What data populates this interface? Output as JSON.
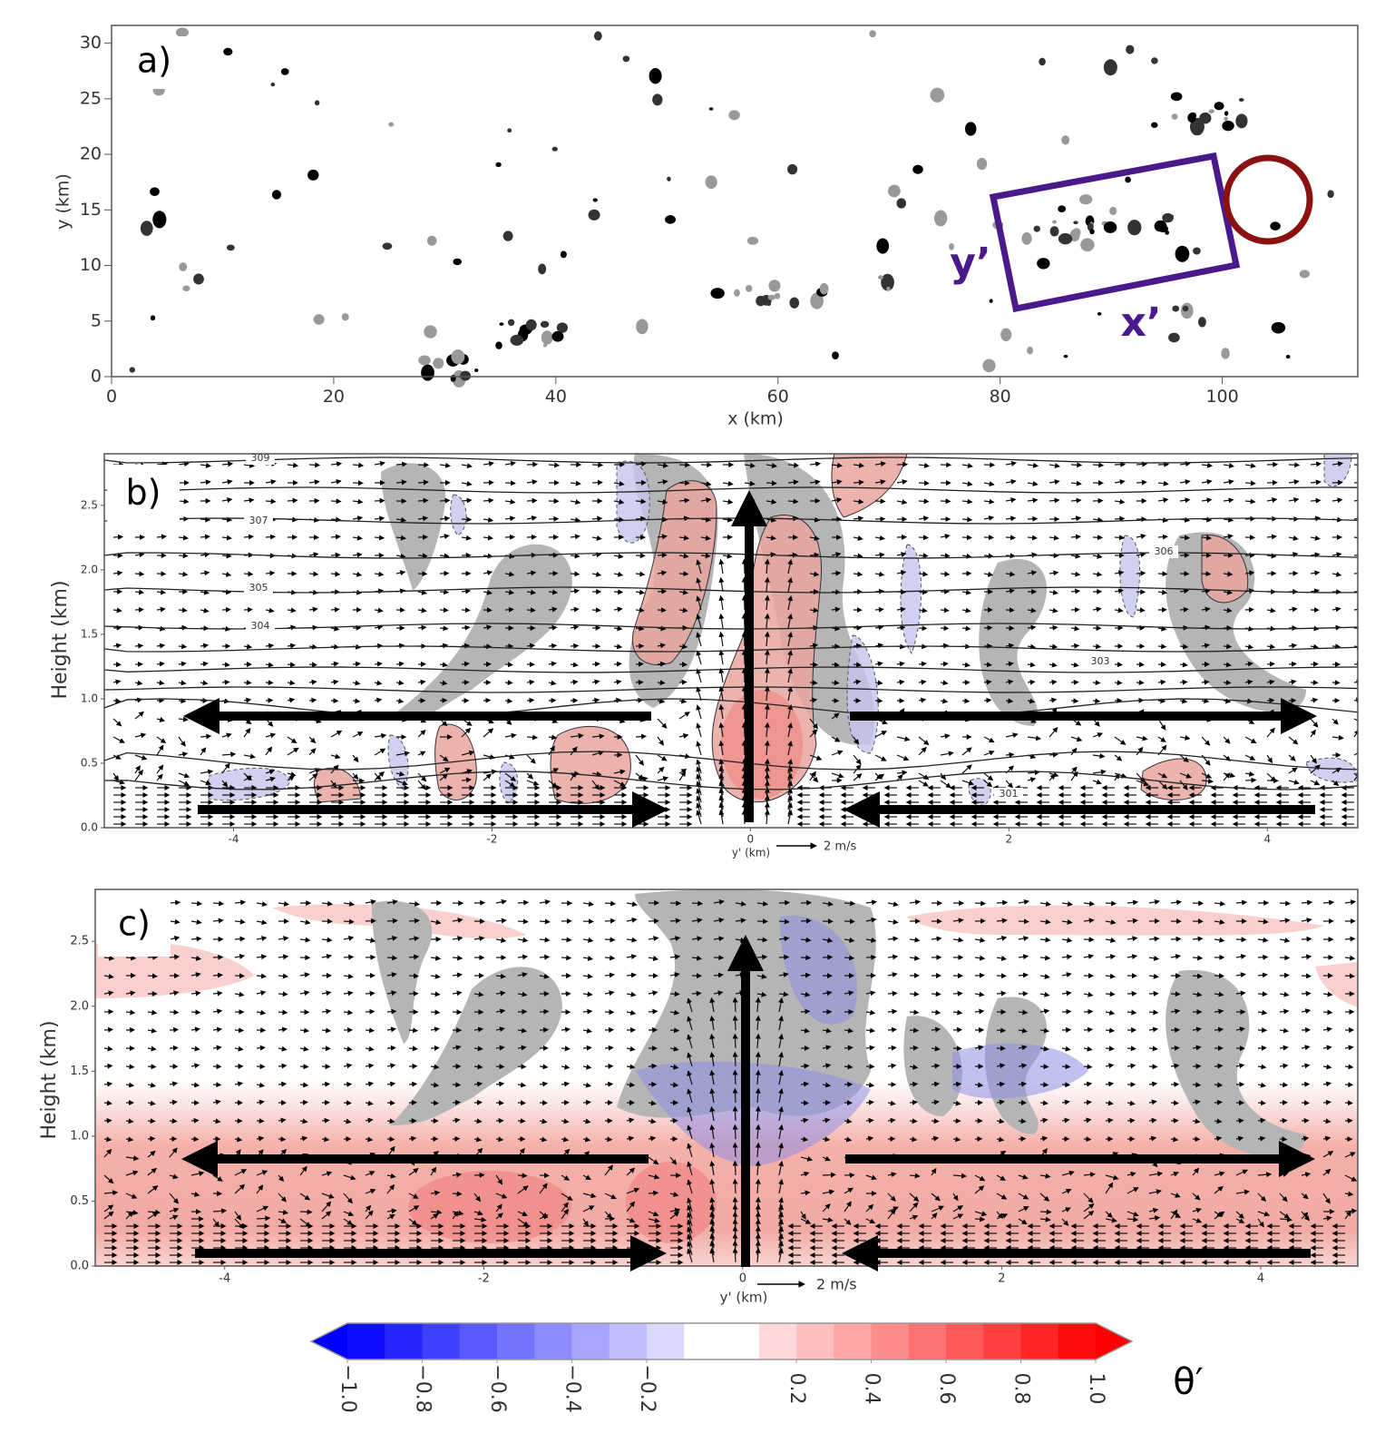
{
  "chart_data": [
    {
      "type": "field",
      "panel_label": "a)",
      "xlabel": "x (km)",
      "ylabel": "y (km)",
      "xlim": [
        0,
        112.2
      ],
      "ylim": [
        0,
        31.6
      ],
      "xticks": [
        0,
        20,
        40,
        60,
        80,
        100
      ],
      "yticks": [
        0,
        5,
        10,
        15,
        20,
        25,
        30
      ],
      "annotations": [
        "y’",
        "x’"
      ]
    },
    {
      "type": "field",
      "panel_label": "b)",
      "xlabel": "y' (km)",
      "ylabel": "Height (km)",
      "quiver_key": "2 m/s",
      "xlim": [
        -5,
        4.7
      ],
      "ylim": [
        0,
        2.9
      ],
      "xticks": [
        -4,
        -2,
        0,
        2,
        4
      ],
      "yticks": [
        {
          "value": 0,
          "label": "0.0"
        },
        0.5,
        {
          "value": 1,
          "label": "1.0"
        },
        1.5,
        {
          "value": 2,
          "label": "2.0"
        },
        2.5
      ],
      "contour_labels": [
        309,
        307,
        305,
        304,
        306,
        303,
        301
      ]
    },
    {
      "type": "field",
      "panel_label": "c)",
      "xlabel": "y' (km)",
      "ylabel": "Height (km)",
      "quiver_key": "2 m/s",
      "xlim": [
        -5,
        4.75
      ],
      "ylim": [
        0,
        2.9
      ],
      "xticks": [
        -4,
        -2,
        0,
        2,
        4
      ],
      "yticks": [
        {
          "value": 0,
          "label": "0.0"
        },
        0.5,
        {
          "value": 1,
          "label": "1.0"
        },
        1.5,
        {
          "value": 2,
          "label": "2.0"
        },
        2.5
      ]
    },
    {
      "type": "colorbar",
      "label": "θ′",
      "xlim": [
        -1,
        1
      ],
      "xticks": [
        {
          "value": -1,
          "label": "−1.0"
        },
        {
          "value": -0.8,
          "label": "−0.8"
        },
        {
          "value": -0.6,
          "label": "−0.6"
        },
        {
          "value": -0.4,
          "label": "−0.4"
        },
        {
          "value": -0.2,
          "label": "−0.2"
        },
        0.2,
        0.4,
        0.6,
        0.8,
        {
          "value": 1,
          "label": "1.0"
        }
      ]
    }
  ]
}
